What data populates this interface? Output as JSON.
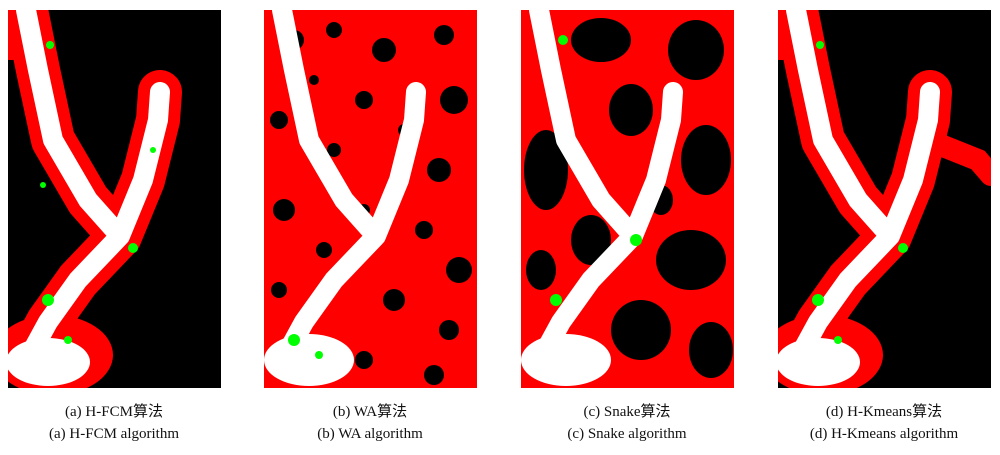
{
  "figure": {
    "panels": [
      {
        "caption_cn": "(a) H-FCM算法",
        "caption_en": "(a) H-FCM algorithm"
      },
      {
        "caption_cn": "(b) WA算法",
        "caption_en": "(b) WA algorithm"
      },
      {
        "caption_cn": "(c) Snake算法",
        "caption_en": "(c) Snake algorithm"
      },
      {
        "caption_cn": "(d) H-Kmeans算法",
        "caption_en": "(d) H-Kmeans algorithm"
      }
    ]
  }
}
